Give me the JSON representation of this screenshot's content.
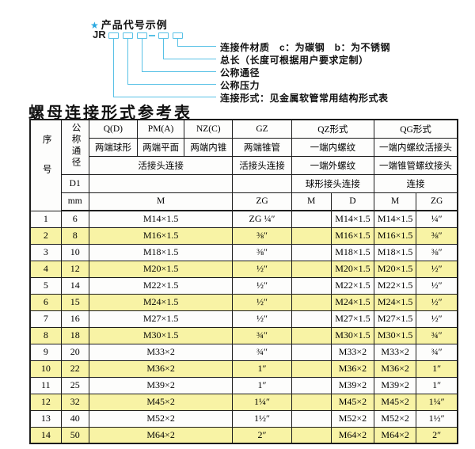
{
  "colors": {
    "header_bg": "#a5d6ec",
    "row_alt": "#f8f3a5",
    "row_white": "#fdfdfc",
    "border": "#1d1d1d",
    "line_blue": "#58c1e6",
    "star_blue": "#29a8e0"
  },
  "diagram": {
    "star": "★",
    "title": "产品代号示例",
    "prefix": "JR",
    "labels": [
      "连接件材质　c：为碳钢　b：为不锈钢",
      "总长（长度可根据用户要求定制）",
      "公称通径",
      "公称压力",
      "连接形式：见金属软管常用结构形式表"
    ]
  },
  "table_title": "螺母连接形式参考表",
  "table": {
    "header": {
      "xuhao": "序号",
      "gongcheng": "公称通径",
      "d1": "D1",
      "mm": "mm",
      "col_q": "Q(D)",
      "col_q_sub": "两端球形",
      "col_pm": "PM(A)",
      "col_pm_sub": "两端平面",
      "col_nz": "NZ(C)",
      "col_nz_sub": "两端内锥",
      "col_gz": "GZ",
      "col_gz_sub": "两端锥管",
      "huojietou": "活接头连接",
      "gz_huojietou": "活接头连接",
      "col_qz": "QZ形式",
      "qz_row2": "一端内螺纹",
      "qz_row3": "一端外螺纹",
      "qz_row4": "球形接头连接",
      "col_qg": "QG形式",
      "qg_row2": "一端内螺纹活接头",
      "qg_row3": "一端锥管螺纹接头",
      "qg_row4": "连接",
      "m_span": "M",
      "zg": "ZG",
      "qz_m": "M",
      "qz_d": "D",
      "qg_m": "M",
      "qg_zg": "ZG"
    },
    "rows": [
      {
        "no": "1",
        "dn": "6",
        "m": "M14×1.5",
        "zg": "ZG ¼″",
        "qz_m": "",
        "qz_d": "M14×1.5",
        "qg_m": "M14×1.5",
        "qg_zg": "¼″"
      },
      {
        "no": "2",
        "dn": "8",
        "m": "M16×1.5",
        "zg": "⅜″",
        "qz_m": "",
        "qz_d": "M16×1.5",
        "qg_m": "M16×1.5",
        "qg_zg": "⅜″"
      },
      {
        "no": "3",
        "dn": "10",
        "m": "M18×1.5",
        "zg": "⅜″",
        "qz_m": "",
        "qz_d": "M18×1.5",
        "qg_m": "M18×1.5",
        "qg_zg": "⅜″"
      },
      {
        "no": "4",
        "dn": "12",
        "m": "M20×1.5",
        "zg": "½″",
        "qz_m": "",
        "qz_d": "M20×1.5",
        "qg_m": "M20×1.5",
        "qg_zg": "½″"
      },
      {
        "no": "5",
        "dn": "14",
        "m": "M22×1.5",
        "zg": "½″",
        "qz_m": "",
        "qz_d": "M22×1.5",
        "qg_m": "M22×1.5",
        "qg_zg": "½″"
      },
      {
        "no": "6",
        "dn": "15",
        "m": "M24×1.5",
        "zg": "½″",
        "qz_m": "",
        "qz_d": "M24×1.5",
        "qg_m": "M24×1.5",
        "qg_zg": "½″"
      },
      {
        "no": "7",
        "dn": "16",
        "m": "M27×1.5",
        "zg": "½″",
        "qz_m": "",
        "qz_d": "M27×1.5",
        "qg_m": "M27×1.5",
        "qg_zg": "½″"
      },
      {
        "no": "8",
        "dn": "18",
        "m": "M30×1.5",
        "zg": "¾″",
        "qz_m": "",
        "qz_d": "M30×1.5",
        "qg_m": "M30×1.5",
        "qg_zg": "¾″"
      },
      {
        "no": "9",
        "dn": "20",
        "m": "M33×2",
        "zg": "¾″",
        "qz_m": "",
        "qz_d": "M33×2",
        "qg_m": "M33×2",
        "qg_zg": "¾″"
      },
      {
        "no": "10",
        "dn": "22",
        "m": "M36×2",
        "zg": "1″",
        "qz_m": "",
        "qz_d": "M36×2",
        "qg_m": "M36×2",
        "qg_zg": "1″"
      },
      {
        "no": "11",
        "dn": "25",
        "m": "M39×2",
        "zg": "1″",
        "qz_m": "",
        "qz_d": "M39×2",
        "qg_m": "M39×2",
        "qg_zg": "1″"
      },
      {
        "no": "12",
        "dn": "32",
        "m": "M45×2",
        "zg": "1¼″",
        "qz_m": "",
        "qz_d": "M45×2",
        "qg_m": "M45×2",
        "qg_zg": "1¼″"
      },
      {
        "no": "13",
        "dn": "40",
        "m": "M52×2",
        "zg": "1½″",
        "qz_m": "",
        "qz_d": "M52×2",
        "qg_m": "M52×2",
        "qg_zg": "1½″"
      },
      {
        "no": "14",
        "dn": "50",
        "m": "M64×2",
        "zg": "2″",
        "qz_m": "",
        "qz_d": "M64×2",
        "qg_m": "M64×2",
        "qg_zg": "2″"
      }
    ]
  }
}
